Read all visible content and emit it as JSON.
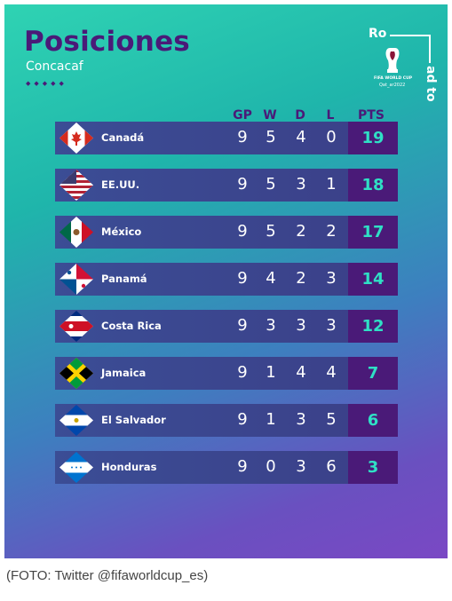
{
  "title": "Posiciones",
  "subtitle": "Concacaf",
  "dots": "◆◆◆◆◆",
  "logo": {
    "text1": "Ro",
    "text2": "ad to",
    "small1": "FIFA WORLD CUP",
    "small2": "Qat_ar2022"
  },
  "columns": {
    "gp": "GP",
    "w": "W",
    "d": "D",
    "l": "L",
    "pts": "PTS"
  },
  "rows": [
    {
      "team": "Canadá",
      "gp": "9",
      "w": "5",
      "d": "4",
      "l": "0",
      "pts": "19",
      "flag": "canada-flag"
    },
    {
      "team": "EE.UU.",
      "gp": "9",
      "w": "5",
      "d": "3",
      "l": "1",
      "pts": "18",
      "flag": "usa-flag"
    },
    {
      "team": "México",
      "gp": "9",
      "w": "5",
      "d": "2",
      "l": "2",
      "pts": "17",
      "flag": "mexico-flag"
    },
    {
      "team": "Panamá",
      "gp": "9",
      "w": "4",
      "d": "2",
      "l": "3",
      "pts": "14",
      "flag": "panama-flag"
    },
    {
      "team": "Costa Rica",
      "gp": "9",
      "w": "3",
      "d": "3",
      "l": "3",
      "pts": "12",
      "flag": "costa-rica-flag"
    },
    {
      "team": "Jamaica",
      "gp": "9",
      "w": "1",
      "d": "4",
      "l": "4",
      "pts": "7",
      "flag": "jamaica-flag"
    },
    {
      "team": "El Salvador",
      "gp": "9",
      "w": "1",
      "d": "3",
      "l": "5",
      "pts": "6",
      "flag": "el-salvador-flag"
    },
    {
      "team": "Honduras",
      "gp": "9",
      "w": "0",
      "d": "3",
      "l": "6",
      "pts": "3",
      "flag": "honduras-flag"
    }
  ],
  "caption": "(FOTO: Twitter @fifaworldcup_es)",
  "colors": {
    "accent_purple": "#4a1a78",
    "pts_text": "#2fe0c5",
    "row_bg": "#3b4d95"
  }
}
